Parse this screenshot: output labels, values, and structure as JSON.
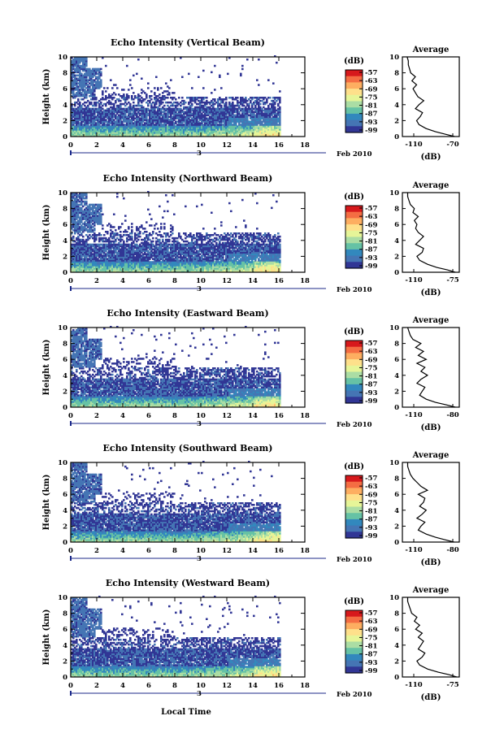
{
  "figure": {
    "x_axis_label": "Local Time",
    "date_label": "Feb 2010",
    "day_marker": "3"
  },
  "colorbar": {
    "unit_label": "(dB)",
    "tick_labels": [
      "-57",
      "-63",
      "-69",
      "-75",
      "-81",
      "-87",
      "-93",
      "-99"
    ],
    "colors": [
      "#d7191c",
      "#f46d43",
      "#fdae61",
      "#fee08b",
      "#e6f598",
      "#abdda4",
      "#66c2a5",
      "#3288bd",
      "#4575b4",
      "#313695"
    ]
  },
  "chart_data": [
    {
      "type": "heatmap",
      "title": "Echo Intensity (Vertical Beam)",
      "ylabel": "Height (km)",
      "xlim": [
        0,
        18
      ],
      "ylim": [
        0,
        10
      ],
      "xticks": [
        0,
        2,
        4,
        6,
        8,
        10,
        12,
        14,
        16,
        18
      ],
      "yticks": [
        0,
        2,
        4,
        6,
        8,
        10
      ],
      "clim": [
        -99,
        -57
      ],
      "profile": {
        "title": "Average",
        "xlabel": "(dB)",
        "xticklabels": [
          "-110",
          "-70"
        ],
        "xlim": [
          -115,
          -67
        ],
        "heights": [
          0,
          0.3,
          0.6,
          1.0,
          1.5,
          2.0,
          2.5,
          3.0,
          3.5,
          4.0,
          4.5,
          5.0,
          5.5,
          6.0,
          6.5,
          7.0,
          7.5,
          8.0,
          8.5,
          9.0,
          9.5,
          10.0
        ],
        "values": [
          -71,
          -79,
          -87,
          -95,
          -101,
          -103,
          -100,
          -98,
          -104,
          -101,
          -97,
          -102,
          -104,
          -106,
          -103,
          -107,
          -104,
          -108,
          -109,
          -110,
          -110,
          -111
        ]
      }
    },
    {
      "type": "heatmap",
      "title": "Echo Intensity (Northward Beam)",
      "ylabel": "Height (km)",
      "xlim": [
        0,
        18
      ],
      "ylim": [
        0,
        10
      ],
      "xticks": [
        0,
        2,
        4,
        6,
        8,
        10,
        12,
        14,
        16,
        18
      ],
      "yticks": [
        0,
        2,
        4,
        6,
        8,
        10
      ],
      "clim": [
        -99,
        -57
      ],
      "profile": {
        "title": "Average",
        "xlabel": "(dB)",
        "xticklabels": [
          "-110",
          "-75"
        ],
        "xlim": [
          -115,
          -72
        ],
        "heights": [
          0,
          0.3,
          0.6,
          1.0,
          1.5,
          2.0,
          2.5,
          3.0,
          3.5,
          4.0,
          4.5,
          5.0,
          5.5,
          6.0,
          6.5,
          7.0,
          7.5,
          8.0,
          8.5,
          9.0,
          9.5,
          10.0
        ],
        "values": [
          -75,
          -81,
          -89,
          -96,
          -102,
          -104,
          -100,
          -99,
          -105,
          -102,
          -99,
          -103,
          -105,
          -104,
          -106,
          -103,
          -107,
          -106,
          -109,
          -110,
          -111,
          -111
        ]
      }
    },
    {
      "type": "heatmap",
      "title": "Echo Intensity (Eastward Beam)",
      "ylabel": "Height (km)",
      "xlim": [
        0,
        18
      ],
      "ylim": [
        0,
        10
      ],
      "xticks": [
        0,
        2,
        4,
        6,
        8,
        10,
        12,
        14,
        16,
        18
      ],
      "yticks": [
        0,
        2,
        4,
        6,
        8,
        10
      ],
      "clim": [
        -99,
        -57
      ],
      "profile": {
        "title": "Average",
        "xlabel": "(dB)",
        "xticklabels": [
          "-110",
          "-80"
        ],
        "xlim": [
          -115,
          -72
        ],
        "heights": [
          0,
          0.3,
          0.6,
          1.0,
          1.5,
          2.0,
          2.5,
          3.0,
          3.5,
          4.0,
          4.5,
          5.0,
          5.5,
          6.0,
          6.5,
          7.0,
          7.5,
          8.0,
          8.5,
          9.0,
          9.5,
          10.0
        ],
        "values": [
          -75,
          -82,
          -90,
          -97,
          -102,
          -100,
          -98,
          -104,
          -101,
          -96,
          -101,
          -98,
          -104,
          -97,
          -103,
          -99,
          -105,
          -101,
          -107,
          -109,
          -110,
          -111
        ]
      }
    },
    {
      "type": "heatmap",
      "title": "Echo Intensity (Southward Beam)",
      "ylabel": "Height (km)",
      "xlim": [
        0,
        18
      ],
      "ylim": [
        0,
        10
      ],
      "xticks": [
        0,
        2,
        4,
        6,
        8,
        10,
        12,
        14,
        16,
        18
      ],
      "yticks": [
        0,
        2,
        4,
        6,
        8,
        10
      ],
      "clim": [
        -99,
        -57
      ],
      "profile": {
        "title": "Average",
        "xlabel": "(dB)",
        "xticklabels": [
          "-110",
          "-80"
        ],
        "xlim": [
          -115,
          -72
        ],
        "heights": [
          0,
          0.3,
          0.6,
          1.0,
          1.5,
          2.0,
          2.5,
          3.0,
          3.5,
          4.0,
          4.5,
          5.0,
          5.5,
          6.0,
          6.5,
          7.0,
          7.5,
          8.0,
          8.5,
          9.0,
          9.5,
          10.0
        ],
        "values": [
          -76,
          -83,
          -90,
          -97,
          -103,
          -101,
          -98,
          -104,
          -100,
          -97,
          -102,
          -99,
          -98,
          -103,
          -96,
          -101,
          -104,
          -107,
          -109,
          -110,
          -111,
          -111
        ]
      }
    },
    {
      "type": "heatmap",
      "title": "Echo Intensity (Westward Beam)",
      "ylabel": "Height (km)",
      "xlim": [
        0,
        18
      ],
      "ylim": [
        0,
        10
      ],
      "xticks": [
        0,
        2,
        4,
        6,
        8,
        10,
        12,
        14,
        16,
        18
      ],
      "yticks": [
        0,
        2,
        4,
        6,
        8,
        10
      ],
      "clim": [
        -99,
        -57
      ],
      "profile": {
        "title": "Average",
        "xlabel": "(dB)",
        "xticklabels": [
          "-110",
          "-75"
        ],
        "xlim": [
          -115,
          -72
        ],
        "heights": [
          0,
          0.3,
          0.6,
          1.0,
          1.5,
          2.0,
          2.5,
          3.0,
          3.5,
          4.0,
          4.5,
          5.0,
          5.5,
          6.0,
          6.5,
          7.0,
          7.5,
          8.0,
          8.5,
          9.0,
          9.5,
          10.0
        ],
        "values": [
          -74,
          -80,
          -88,
          -96,
          -102,
          -104,
          -100,
          -98,
          -103,
          -101,
          -99,
          -103,
          -100,
          -105,
          -102,
          -106,
          -104,
          -108,
          -109,
          -110,
          -111,
          -111
        ]
      }
    }
  ]
}
